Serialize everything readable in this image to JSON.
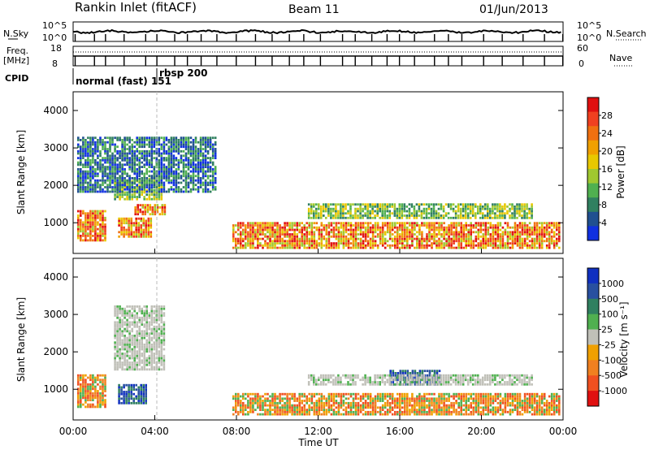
{
  "header": {
    "station": "Rankin Inlet (fitACF)",
    "beam": "Beam 11",
    "date": "01/Jun/2013"
  },
  "nsky_panel": {
    "left_label": "N.Sky",
    "right_label": "N.Search",
    "y_ticks_left": [
      "10^5",
      "10^0"
    ],
    "y_ticks_right": [
      "10^5",
      "10^0"
    ]
  },
  "freq_panel": {
    "left_label_line1": "Freq.",
    "left_label_line2": "[MHz]",
    "right_label": "Nave",
    "y_ticks_left": [
      "18",
      "8"
    ],
    "y_ticks_right": [
      "60",
      "0"
    ]
  },
  "cpid": {
    "label": "CPID",
    "segments": [
      {
        "text": "normal (fast) 151",
        "start_hour": 0
      },
      {
        "text": "rbsp 200",
        "start_hour": 4.0
      }
    ]
  },
  "power_panel": {
    "ylabel": "Slant Range [km]",
    "yticks": [
      "4000",
      "3000",
      "2000",
      "1000"
    ],
    "colorbar_label": "Power [dB]",
    "colorbar_ticks": [
      "28",
      "24",
      "20",
      "16",
      "12",
      "8",
      "4"
    ],
    "colorbar_colors": [
      "#e01010",
      "#f04020",
      "#f07010",
      "#f0a000",
      "#e8c800",
      "#a0c830",
      "#50b050",
      "#308060",
      "#205090",
      "#1030e0"
    ]
  },
  "velocity_panel": {
    "ylabel": "Slant Range [km]",
    "yticks": [
      "4000",
      "3000",
      "2000",
      "1000"
    ],
    "colorbar_label": "Velocity [m s⁻¹]",
    "colorbar_ticks": [
      "1000",
      "500",
      "100",
      "25",
      "-25",
      "-100",
      "-500",
      "-1000"
    ],
    "colorbar_colors": [
      "#1030c0",
      "#2850a0",
      "#308060",
      "#50b050",
      "#c0c0b8",
      "#f0a000",
      "#f08020",
      "#f05020",
      "#e01010"
    ]
  },
  "xaxis": {
    "label": "Time UT",
    "ticks": [
      "00:00",
      "04:00",
      "08:00",
      "12:00",
      "16:00",
      "20:00",
      "00:00"
    ]
  },
  "chart_data": {
    "type": "heatmap",
    "title": "Rankin Inlet (fitACF) Beam 11 01/Jun/2013",
    "xlabel": "Time UT",
    "ylabel": "Slant Range [km]",
    "xlim_hours": [
      0,
      24
    ],
    "ylim_km": [
      180,
      4500
    ],
    "cpid_change_hour": 4.0,
    "power_features": [
      {
        "t0": 0.2,
        "t1": 1.6,
        "r0": 500,
        "r1": 1300,
        "level": "high"
      },
      {
        "t0": 2.2,
        "t1": 3.8,
        "r0": 600,
        "r1": 1100,
        "level": "high"
      },
      {
        "t0": 3.0,
        "t1": 4.5,
        "r0": 1200,
        "r1": 1500,
        "level": "high"
      },
      {
        "t0": 2.0,
        "t1": 4.3,
        "r0": 1600,
        "r1": 2200,
        "level": "medium"
      },
      {
        "t0": 7.8,
        "t1": 23.8,
        "r0": 300,
        "r1": 1000,
        "level": "high"
      },
      {
        "t0": 11.5,
        "t1": 22.5,
        "r0": 1100,
        "r1": 1500,
        "level": "medium"
      },
      {
        "t0": 0.2,
        "t1": 7.0,
        "r0": 1800,
        "r1": 3300,
        "level": "low"
      }
    ],
    "velocity_features": [
      {
        "t0": 0.2,
        "t1": 1.6,
        "r0": 500,
        "r1": 1400,
        "sign": "negative"
      },
      {
        "t0": 2.2,
        "t1": 3.6,
        "r0": 600,
        "r1": 1100,
        "sign": "positive"
      },
      {
        "t0": 2.0,
        "t1": 4.5,
        "r0": 1500,
        "r1": 3200,
        "sign": "near-zero"
      },
      {
        "t0": 7.8,
        "t1": 23.8,
        "r0": 300,
        "r1": 900,
        "sign": "negative"
      },
      {
        "t0": 15.5,
        "t1": 18.0,
        "r0": 1100,
        "r1": 1500,
        "sign": "positive"
      },
      {
        "t0": 11.5,
        "t1": 22.5,
        "r0": 1100,
        "r1": 1400,
        "sign": "near-zero"
      }
    ]
  }
}
